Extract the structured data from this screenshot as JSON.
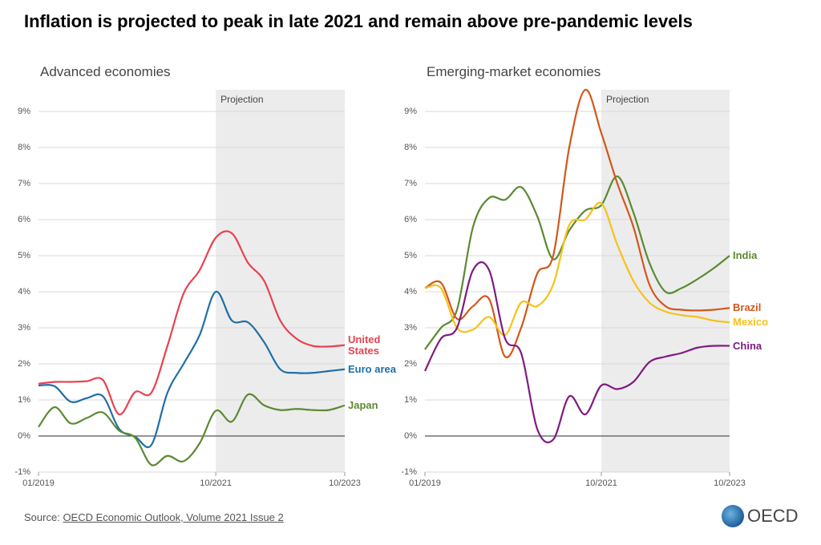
{
  "title": "Inflation is projected to peak in late 2021 and remain above pre-pandemic levels",
  "chart_data": [
    {
      "type": "line",
      "title": "Advanced economies",
      "x": [
        "01/2019",
        "04/2019",
        "07/2019",
        "10/2019",
        "01/2020",
        "04/2020",
        "07/2020",
        "10/2020",
        "01/2021",
        "04/2021",
        "07/2021",
        "10/2021",
        "01/2022",
        "04/2022",
        "07/2022",
        "10/2022",
        "01/2023",
        "04/2023",
        "07/2023",
        "10/2023"
      ],
      "xlim": [
        "01/2019",
        "10/2023"
      ],
      "xticks": [
        "01/2019",
        "10/2021",
        "10/2023"
      ],
      "ylim": [
        -1,
        9.6
      ],
      "yticks": [
        {
          "value": -1,
          "label": "-1%"
        },
        {
          "value": 0,
          "label": "0%"
        },
        {
          "value": 1,
          "label": "1%"
        },
        {
          "value": 2,
          "label": "2%"
        },
        {
          "value": 3,
          "label": "3%"
        },
        {
          "value": 4,
          "label": "4%"
        },
        {
          "value": 5,
          "label": "5%"
        },
        {
          "value": 6,
          "label": "6%"
        },
        {
          "value": 7,
          "label": "7%"
        },
        {
          "value": 8,
          "label": "8%"
        },
        {
          "value": 9,
          "label": "9%"
        }
      ],
      "grid": true,
      "projection": {
        "label": "Projection",
        "from": "10/2021"
      },
      "series": [
        {
          "name": "United States",
          "color": "#e8424f",
          "values": [
            1.45,
            1.5,
            1.5,
            1.52,
            1.55,
            0.6,
            1.22,
            1.2,
            2.5,
            3.95,
            4.6,
            5.5,
            5.62,
            4.8,
            4.3,
            3.2,
            2.7,
            2.5,
            2.48,
            2.52
          ]
        },
        {
          "name": "Euro area",
          "color": "#1f6fa8",
          "values": [
            1.4,
            1.38,
            0.95,
            1.05,
            1.1,
            0.2,
            -0.02,
            -0.25,
            1.2,
            2.0,
            2.8,
            4.0,
            3.2,
            3.15,
            2.6,
            1.85,
            1.75,
            1.75,
            1.8,
            1.85
          ]
        },
        {
          "name": "Japan",
          "color": "#5b8a32",
          "values": [
            0.25,
            0.8,
            0.35,
            0.5,
            0.65,
            0.15,
            -0.05,
            -0.8,
            -0.55,
            -0.7,
            -0.2,
            0.7,
            0.4,
            1.15,
            0.85,
            0.72,
            0.75,
            0.72,
            0.72,
            0.85
          ]
        }
      ]
    },
    {
      "type": "line",
      "title": "Emerging-market economies",
      "x": [
        "01/2019",
        "04/2019",
        "07/2019",
        "10/2019",
        "01/2020",
        "04/2020",
        "07/2020",
        "10/2020",
        "01/2021",
        "04/2021",
        "07/2021",
        "10/2021",
        "01/2022",
        "04/2022",
        "07/2022",
        "10/2022",
        "01/2023",
        "04/2023",
        "07/2023",
        "10/2023"
      ],
      "xlim": [
        "01/2019",
        "10/2023"
      ],
      "xticks": [
        "01/2019",
        "10/2021",
        "10/2023"
      ],
      "ylim": [
        -1,
        9.6
      ],
      "yticks": [
        {
          "value": -1,
          "label": "-1%"
        },
        {
          "value": 0,
          "label": "0%"
        },
        {
          "value": 1,
          "label": "1%"
        },
        {
          "value": 2,
          "label": "2%"
        },
        {
          "value": 3,
          "label": "3%"
        },
        {
          "value": 4,
          "label": "4%"
        },
        {
          "value": 5,
          "label": "5%"
        },
        {
          "value": 6,
          "label": "6%"
        },
        {
          "value": 7,
          "label": "7%"
        },
        {
          "value": 8,
          "label": "8%"
        },
        {
          "value": 9,
          "label": "9%"
        }
      ],
      "grid": true,
      "projection": {
        "label": "Projection",
        "from": "10/2021"
      },
      "series": [
        {
          "name": "India",
          "color": "#5b8a32",
          "values": [
            2.4,
            3.0,
            3.5,
            5.8,
            6.6,
            6.55,
            6.9,
            6.1,
            4.9,
            5.7,
            6.25,
            6.4,
            7.2,
            6.2,
            4.8,
            4.0,
            4.1,
            4.35,
            4.65,
            5.0
          ]
        },
        {
          "name": "Brazil",
          "color": "#d2571b",
          "values": [
            4.1,
            4.25,
            3.25,
            3.6,
            3.8,
            2.2,
            3.0,
            4.5,
            5.0,
            8.0,
            9.6,
            8.4,
            7.0,
            5.8,
            4.2,
            3.6,
            3.5,
            3.48,
            3.5,
            3.55
          ]
        },
        {
          "name": "Mexico",
          "color": "#f5c21b",
          "values": [
            4.1,
            4.1,
            3.0,
            2.95,
            3.3,
            2.8,
            3.7,
            3.6,
            4.2,
            5.85,
            6.0,
            6.45,
            5.3,
            4.3,
            3.7,
            3.45,
            3.35,
            3.3,
            3.2,
            3.15
          ]
        },
        {
          "name": "China",
          "color": "#7f1a82",
          "values": [
            1.8,
            2.7,
            3.0,
            4.6,
            4.6,
            2.7,
            2.3,
            0.2,
            -0.1,
            1.1,
            0.6,
            1.4,
            1.3,
            1.5,
            2.05,
            2.2,
            2.3,
            2.45,
            2.5,
            2.5
          ]
        }
      ]
    }
  ],
  "source": {
    "prefix": "Source:",
    "link": "OECD Economic Outlook, Volume 2021 Issue 2"
  },
  "logo": "OECD"
}
